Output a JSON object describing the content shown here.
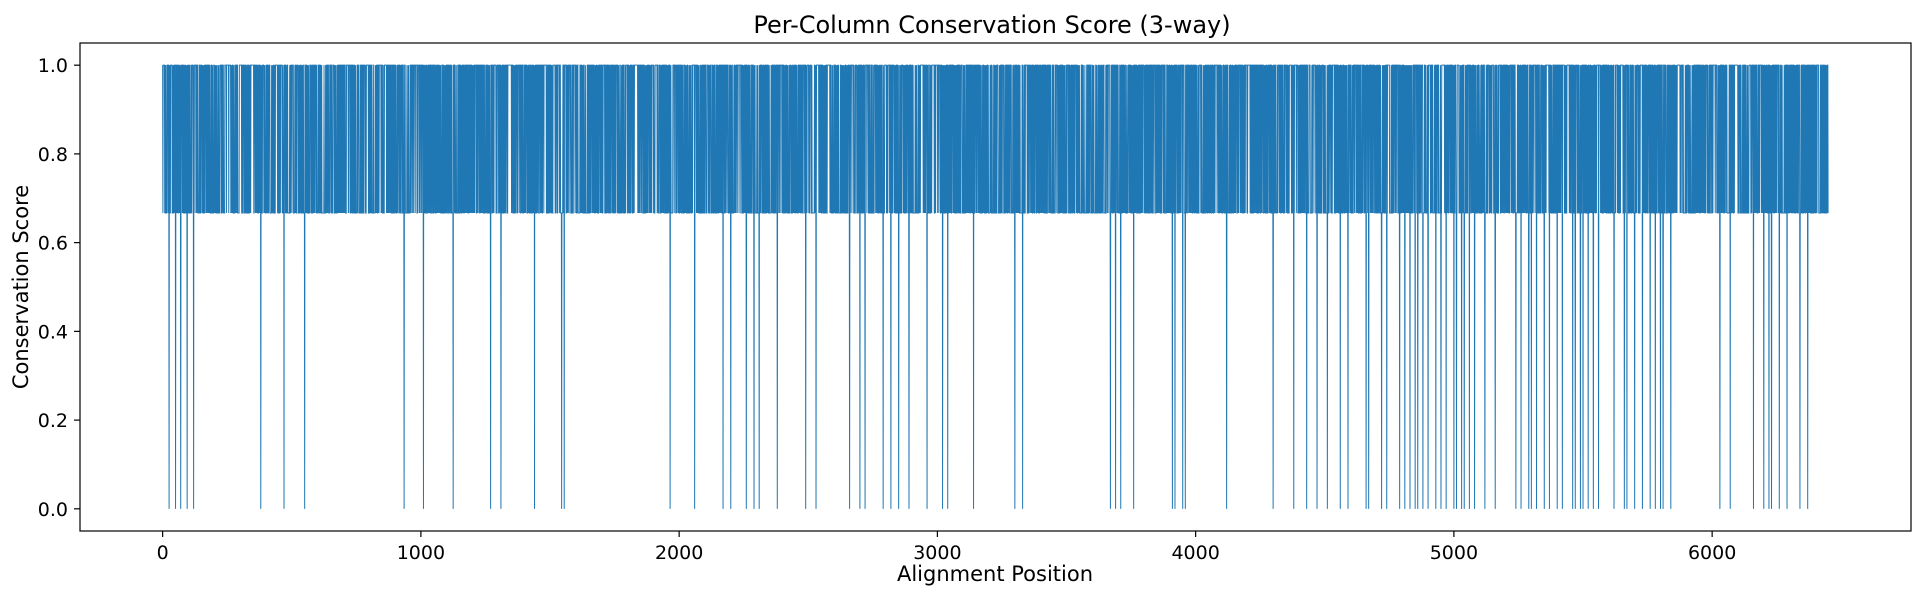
{
  "chart_data": {
    "type": "line",
    "title": "Per-Column Conservation Score (3-way)",
    "xlabel": "Alignment Position",
    "ylabel": "Conservation Score",
    "xlim": [
      -320,
      6770
    ],
    "ylim": [
      -0.05,
      1.05
    ],
    "xticks": [
      0,
      1000,
      2000,
      3000,
      4000,
      5000,
      6000
    ],
    "yticks": [
      0.0,
      0.2,
      0.4,
      0.6,
      0.8,
      1.0
    ],
    "xtick_labels": [
      "0",
      "1000",
      "2000",
      "3000",
      "4000",
      "5000",
      "6000"
    ],
    "ytick_labels": [
      "0.0",
      "0.2",
      "0.4",
      "0.6",
      "0.8",
      "1.0"
    ],
    "grid": false,
    "legend": "none",
    "series": [
      {
        "color": "#1f77b4",
        "x_range": [
          0,
          6449
        ],
        "levels": [
          0.0,
          0.6667,
          1.0
        ],
        "baseline_level": 0.6667,
        "zero_positions": [
          25,
          50,
          70,
          95,
          120,
          380,
          470,
          550,
          935,
          1010,
          1125,
          1270,
          1310,
          1440,
          1545,
          1555,
          1965,
          2060,
          2170,
          2200,
          2260,
          2290,
          2310,
          2380,
          2490,
          2530,
          2660,
          2700,
          2720,
          2790,
          2820,
          2850,
          2890,
          2960,
          3020,
          3040,
          3140,
          3300,
          3330,
          3670,
          3690,
          3710,
          3760,
          3910,
          3920,
          3950,
          3960,
          4120,
          4300,
          4380,
          4430,
          4470,
          4510,
          4560,
          4590,
          4660,
          4670,
          4720,
          4740,
          4790,
          4810,
          4830,
          4850,
          4860,
          4880,
          4900,
          4930,
          4950,
          4970,
          5000,
          5010,
          5030,
          5040,
          5060,
          5080,
          5120,
          5160,
          5240,
          5260,
          5290,
          5300,
          5320,
          5350,
          5370,
          5400,
          5420,
          5460,
          5470,
          5490,
          5500,
          5520,
          5540,
          5560,
          5620,
          5660,
          5670,
          5700,
          5730,
          5760,
          5780,
          5800,
          5810,
          5840,
          6030,
          6070,
          6160,
          6200,
          6220,
          6230,
          6260,
          6290,
          6340,
          6370
        ]
      }
    ]
  }
}
